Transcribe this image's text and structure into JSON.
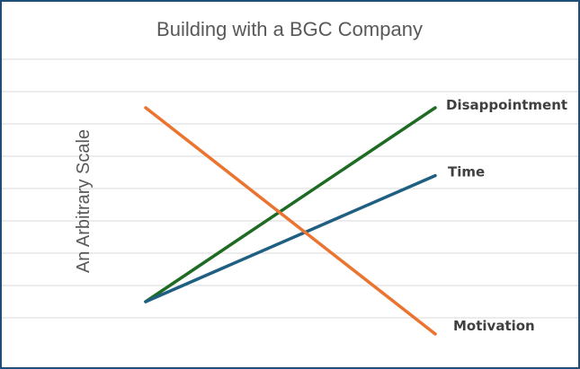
{
  "chart_data": {
    "type": "line",
    "title": "Building with a BGC Company",
    "xlabel": "",
    "ylabel": "An Arbitrary Scale",
    "x": [
      0,
      1
    ],
    "ylim": [
      0,
      10
    ],
    "yticks_shown": false,
    "grid": true,
    "legend": "inline-right",
    "series": [
      {
        "name": "Disappointment",
        "values": [
          1.5,
          7.5
        ],
        "color": "#1e6b24"
      },
      {
        "name": "Time",
        "values": [
          1.5,
          5.4
        ],
        "color": "#1f5f82"
      },
      {
        "name": "Motivation",
        "values": [
          7.5,
          0.5
        ],
        "color": "#ea7430"
      }
    ]
  }
}
